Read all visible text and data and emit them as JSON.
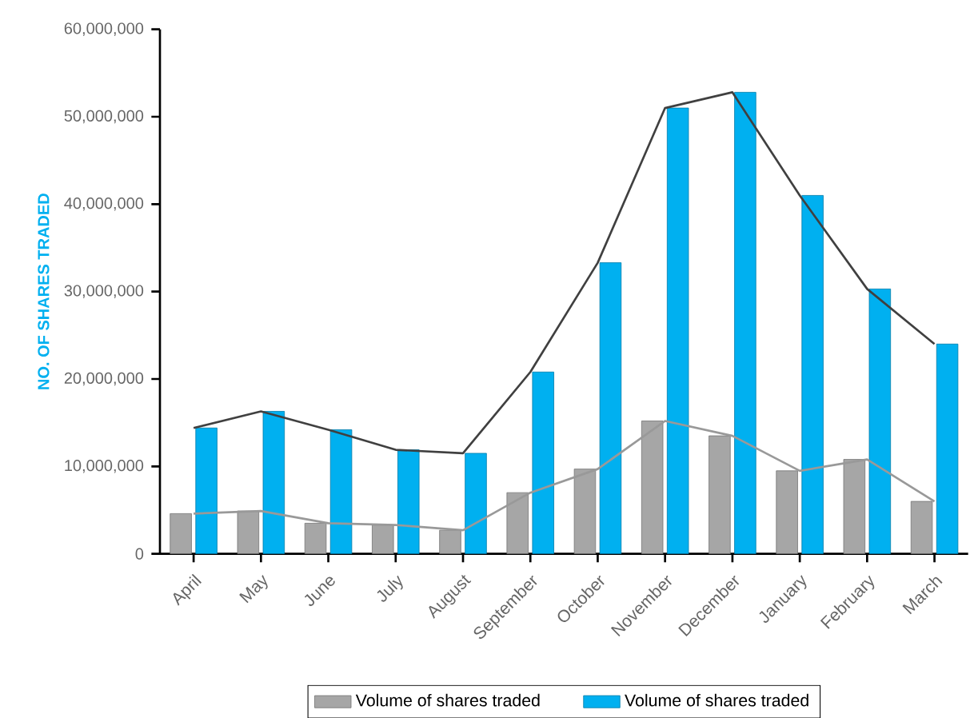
{
  "chart_data": {
    "type": "bar",
    "ylabel": "NO. OF SHARES TRADED",
    "categories": [
      "April",
      "May",
      "June",
      "July",
      "August",
      "September",
      "October",
      "November",
      "December",
      "January",
      "February",
      "March"
    ],
    "series": [
      {
        "name": "Volume of shares traded",
        "color": "#a6a6a6",
        "values": [
          4600000,
          4900000,
          3500000,
          3300000,
          2700000,
          7000000,
          9700000,
          15200000,
          13500000,
          9500000,
          10800000,
          6000000
        ]
      },
      {
        "name": "Volume of shares traded",
        "color": "#00b0f0",
        "values": [
          14400000,
          16300000,
          14200000,
          11900000,
          11500000,
          20800000,
          33300000,
          51000000,
          52800000,
          41000000,
          30300000,
          24000000
        ]
      },
      {
        "type": "line",
        "color": "#999999",
        "values": [
          4600000,
          4900000,
          3500000,
          3300000,
          2700000,
          7000000,
          9700000,
          15200000,
          13500000,
          9500000,
          10800000,
          6000000
        ]
      },
      {
        "type": "line",
        "color": "#404040",
        "values": [
          14400000,
          16300000,
          14200000,
          11900000,
          11500000,
          20800000,
          33300000,
          51000000,
          52800000,
          41000000,
          30300000,
          24000000
        ]
      }
    ],
    "ylim": [
      0,
      60000000
    ],
    "yticks": [
      {
        "value": 0,
        "label": "0"
      },
      {
        "value": 10000000,
        "label": "10,000,000"
      },
      {
        "value": 20000000,
        "label": "20,000,000"
      },
      {
        "value": 30000000,
        "label": "30,000,000"
      },
      {
        "value": 40000000,
        "label": "40,000,000"
      },
      {
        "value": 50000000,
        "label": "50,000,000"
      },
      {
        "value": 60000000,
        "label": "60,000,000"
      }
    ],
    "grid": false,
    "legend": "bottom"
  }
}
